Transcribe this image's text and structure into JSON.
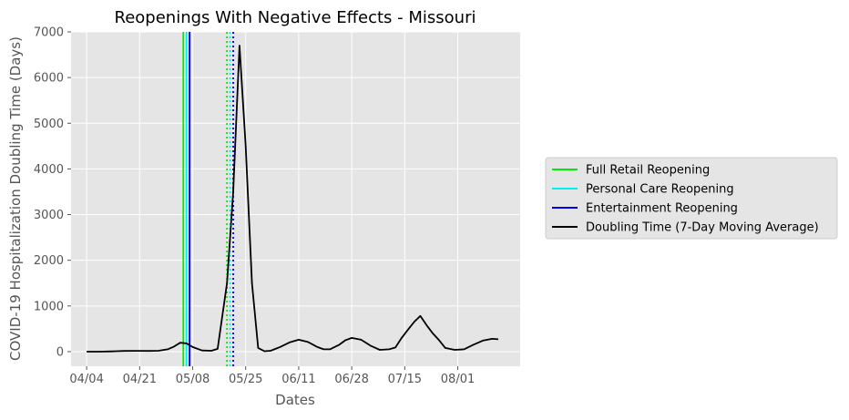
{
  "chart_data": {
    "type": "line",
    "title": "Reopenings With Negative Effects - Missouri",
    "xlabel": "Dates",
    "ylabel": "COVID-19 Hospitalization Doubling Time (Days)",
    "xlim": [
      "2020-03-30",
      "2020-08-21"
    ],
    "ylim": [
      -320,
      7000
    ],
    "x_ticks": [
      {
        "date": "2020-04-04",
        "label": "04/04"
      },
      {
        "date": "2020-04-21",
        "label": "04/21"
      },
      {
        "date": "2020-05-08",
        "label": "05/08"
      },
      {
        "date": "2020-05-25",
        "label": "05/25"
      },
      {
        "date": "2020-06-11",
        "label": "06/11"
      },
      {
        "date": "2020-06-28",
        "label": "06/28"
      },
      {
        "date": "2020-07-15",
        "label": "07/15"
      },
      {
        "date": "2020-08-01",
        "label": "08/01"
      }
    ],
    "y_ticks": [
      0,
      1000,
      2000,
      3000,
      4000,
      5000,
      6000,
      7000
    ],
    "grid": true,
    "legend_position": "outside-right",
    "series": [
      {
        "name": "Doubling Time (7-Day Moving Average)",
        "color": "#000000",
        "style": "solid",
        "x": [
          "2020-04-04",
          "2020-04-08",
          "2020-04-12",
          "2020-04-16",
          "2020-04-20",
          "2020-04-24",
          "2020-04-27",
          "2020-04-30",
          "2020-05-02",
          "2020-05-04",
          "2020-05-06",
          "2020-05-08",
          "2020-05-11",
          "2020-05-14",
          "2020-05-16",
          "2020-05-19",
          "2020-05-21",
          "2020-05-23",
          "2020-05-25",
          "2020-05-27",
          "2020-05-29",
          "2020-05-31",
          "2020-06-02",
          "2020-06-05",
          "2020-06-08",
          "2020-06-11",
          "2020-06-14",
          "2020-06-17",
          "2020-06-19",
          "2020-06-21",
          "2020-06-24",
          "2020-06-26",
          "2020-06-28",
          "2020-07-01",
          "2020-07-04",
          "2020-07-07",
          "2020-07-10",
          "2020-07-12",
          "2020-07-14",
          "2020-07-16",
          "2020-07-18",
          "2020-07-20",
          "2020-07-22",
          "2020-07-24",
          "2020-07-26",
          "2020-07-28",
          "2020-07-31",
          "2020-08-03",
          "2020-08-06",
          "2020-08-09",
          "2020-08-12",
          "2020-08-14"
        ],
        "y": [
          0,
          0,
          5,
          15,
          18,
          15,
          20,
          50,
          110,
          195,
          180,
          100,
          25,
          20,
          60,
          1500,
          3500,
          6700,
          4500,
          1500,
          80,
          10,
          20,
          100,
          200,
          260,
          210,
          100,
          50,
          50,
          150,
          250,
          300,
          260,
          130,
          40,
          50,
          90,
          300,
          480,
          650,
          780,
          580,
          400,
          250,
          80,
          40,
          50,
          150,
          240,
          280,
          270
        ]
      }
    ],
    "vertical_lines": [
      {
        "name": "Full Retail Reopening",
        "date": "2020-05-05",
        "color": "#00ee00",
        "style": "solid",
        "in_legend": true
      },
      {
        "name": "Personal Care Reopening",
        "date": "2020-05-06",
        "color": "#00f0f0",
        "style": "solid",
        "in_legend": true
      },
      {
        "name": "Entertainment Reopening",
        "date": "2020-05-07",
        "color": "#0000ee",
        "style": "solid",
        "in_legend": true
      },
      {
        "date": "2020-05-19",
        "color": "#00ee00",
        "style": "dotted",
        "in_legend": false
      },
      {
        "date": "2020-05-20",
        "color": "#00f0f0",
        "style": "dotted",
        "in_legend": false
      },
      {
        "date": "2020-05-21",
        "color": "#0000ee",
        "style": "dotted",
        "in_legend": false
      }
    ]
  }
}
